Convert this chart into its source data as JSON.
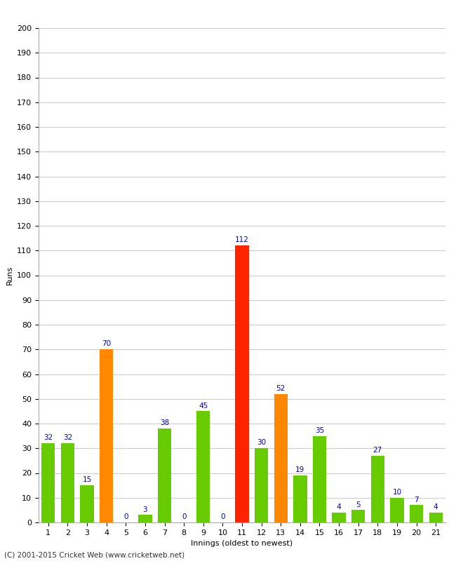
{
  "xlabel": "Innings (oldest to newest)",
  "ylabel": "Runs",
  "categories": [
    1,
    2,
    3,
    4,
    5,
    6,
    7,
    8,
    9,
    10,
    11,
    12,
    13,
    14,
    15,
    16,
    17,
    18,
    19,
    20,
    21
  ],
  "values": [
    32,
    32,
    15,
    70,
    0,
    3,
    38,
    0,
    45,
    0,
    112,
    30,
    52,
    19,
    35,
    4,
    5,
    27,
    10,
    7,
    4
  ],
  "bar_colors": [
    "#66cc00",
    "#66cc00",
    "#66cc00",
    "#ff8800",
    "#66cc00",
    "#66cc00",
    "#66cc00",
    "#66cc00",
    "#66cc00",
    "#66cc00",
    "#ff2200",
    "#66cc00",
    "#ff8800",
    "#66cc00",
    "#66cc00",
    "#66cc00",
    "#66cc00",
    "#66cc00",
    "#66cc00",
    "#66cc00",
    "#66cc00"
  ],
  "ylim": [
    0,
    200
  ],
  "yticks": [
    0,
    10,
    20,
    30,
    40,
    50,
    60,
    70,
    80,
    90,
    100,
    110,
    120,
    130,
    140,
    150,
    160,
    170,
    180,
    190,
    200
  ],
  "label_color": "#0000cc",
  "label_fontsize": 7.5,
  "axis_label_fontsize": 8,
  "tick_fontsize": 8,
  "background_color": "#ffffff",
  "grid_color": "#cccccc",
  "footer": "(C) 2001-2015 Cricket Web (www.cricketweb.net)"
}
